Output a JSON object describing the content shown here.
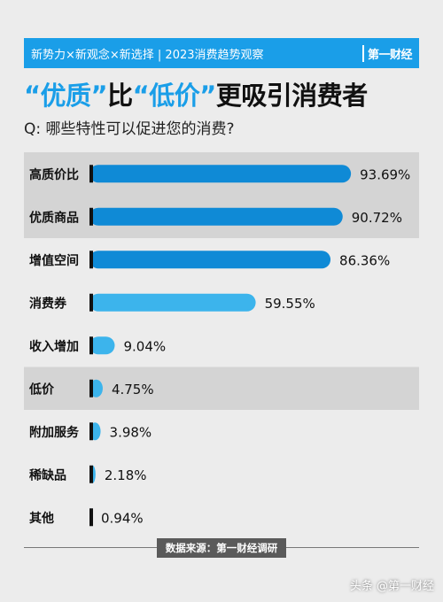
{
  "banner": {
    "text": "新势力×新观念×新选择 | 2023消费趋势观察",
    "brand": "第一财经"
  },
  "headline": {
    "part1": "“优质”",
    "part2": "比",
    "part3": "“低价”",
    "part4": "更吸引消费者"
  },
  "question": "Q: 哪些特性可以促进您的消费?",
  "source": "数据来源：第一财经调研",
  "watermark": "头条 @第一财经",
  "colors": {
    "bar_dark": "#0f8ad6",
    "bar_light": "#3cb4ec",
    "highlight_row": "#d4d4d4",
    "accent": "#1a9ee8"
  },
  "chart_data": {
    "type": "bar",
    "orientation": "horizontal",
    "categories": [
      "高质价比",
      "优质商品",
      "增值空间",
      "消费券",
      "收入增加",
      "低价",
      "附加服务",
      "稀缺品",
      "其他"
    ],
    "values": [
      93.69,
      90.72,
      86.36,
      59.55,
      9.04,
      4.75,
      3.98,
      2.18,
      0.94
    ],
    "labels": [
      "93.69%",
      "90.72%",
      "86.36%",
      "59.55%",
      "9.04%",
      "4.75%",
      "3.98%",
      "2.18%",
      "0.94%"
    ],
    "highlighted": [
      true,
      true,
      false,
      false,
      false,
      true,
      false,
      false,
      false
    ],
    "xlim": [
      0,
      100
    ]
  }
}
